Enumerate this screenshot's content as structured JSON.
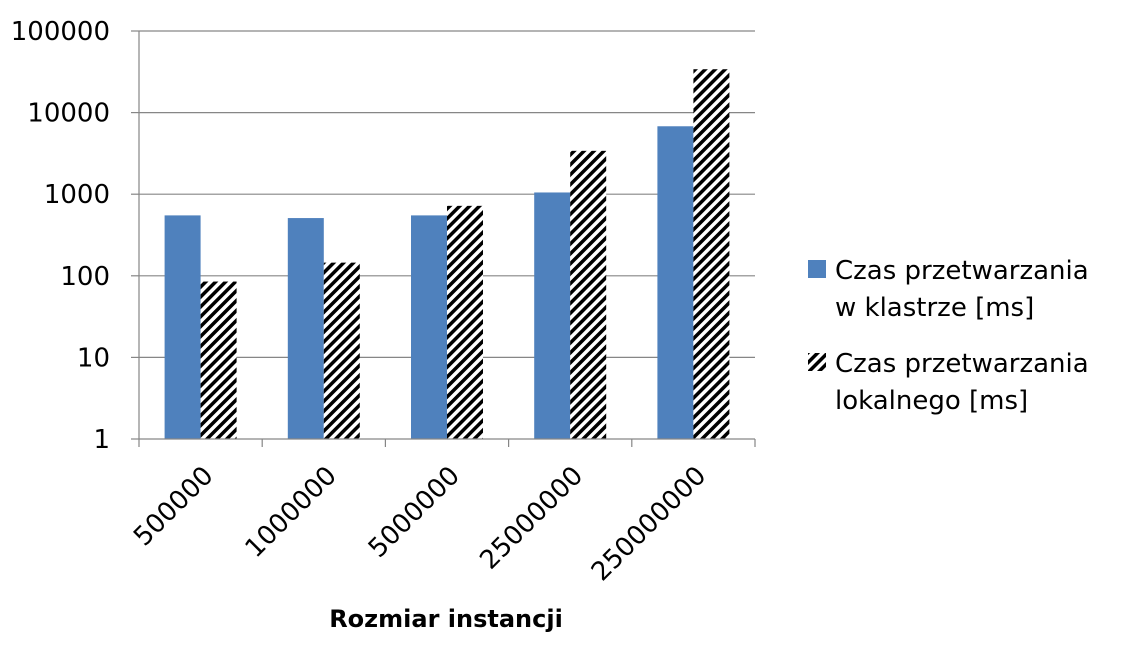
{
  "chart_data": {
    "type": "bar",
    "y_scale": "log",
    "ylim": [
      1,
      100000
    ],
    "y_ticks": [
      "1",
      "10",
      "100",
      "1000",
      "10000",
      "100000"
    ],
    "categories": [
      "500000",
      "1000000",
      "5000000",
      "25000000",
      "250000000"
    ],
    "series": [
      {
        "name": "Czas przetwarzania w klastrze [ms]",
        "name_lines": [
          "Czas przetwarzania",
          "w klastrze [ms]"
        ],
        "values": [
          550,
          510,
          550,
          1050,
          6800
        ],
        "color": "#4F81BD",
        "pattern": "solid"
      },
      {
        "name": "Czas przetwarzania lokalnego [ms]",
        "name_lines": [
          "Czas przetwarzania",
          "lokalnego [ms]"
        ],
        "values": [
          85,
          145,
          720,
          3400,
          34000
        ],
        "color": "#000000",
        "pattern": "diagonal-hatch"
      }
    ],
    "xlabel": "Rozmiar instancji",
    "ylabel": "",
    "title": "",
    "grid": "horizontal",
    "legend_position": "right"
  }
}
